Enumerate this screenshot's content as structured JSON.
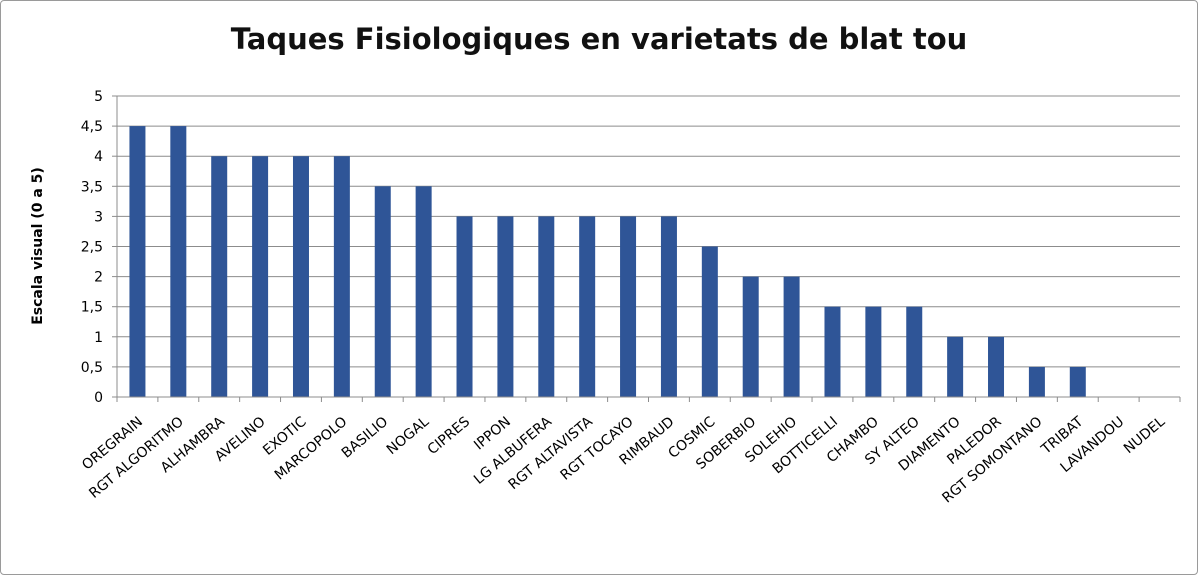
{
  "chart_data": {
    "type": "bar",
    "title": "Taques Fisiologiques en varietats de blat tou",
    "xlabel": "",
    "ylabel": "Escala visual (0 a 5)",
    "ylim": [
      0,
      5
    ],
    "yticks": [
      "0",
      "0,5",
      "1",
      "1,5",
      "2",
      "2,5",
      "3",
      "3,5",
      "4",
      "4,5",
      "5"
    ],
    "grid": true,
    "bar_color": "#2f5597",
    "categories": [
      "OREGRAIN",
      "RGT ALGORITMO",
      "ALHAMBRA",
      "AVELINO",
      "EXOTIC",
      "MARCOPOLO",
      "BASILIO",
      "NOGAL",
      "CIPRES",
      "IPPON",
      "LG ALBUFERA",
      "RGT ALTAVISTA",
      "RGT TOCAYO",
      "RIMBAUD",
      "COSMIC",
      "SOBERBIO",
      "SOLEHIO",
      "BOTTICELLI",
      "CHAMBO",
      "SY ALTEO",
      "DIAMENTO",
      "PALEDOR",
      "RGT SOMONTANO",
      "TRIBAT",
      "LAVANDOU",
      "NUDEL"
    ],
    "values": [
      4.5,
      4.5,
      4,
      4,
      4,
      4,
      3.5,
      3.5,
      3,
      3,
      3,
      3,
      3,
      3,
      2.5,
      2,
      2,
      1.5,
      1.5,
      1.5,
      1,
      1,
      0.5,
      0.5,
      0,
      0
    ]
  }
}
